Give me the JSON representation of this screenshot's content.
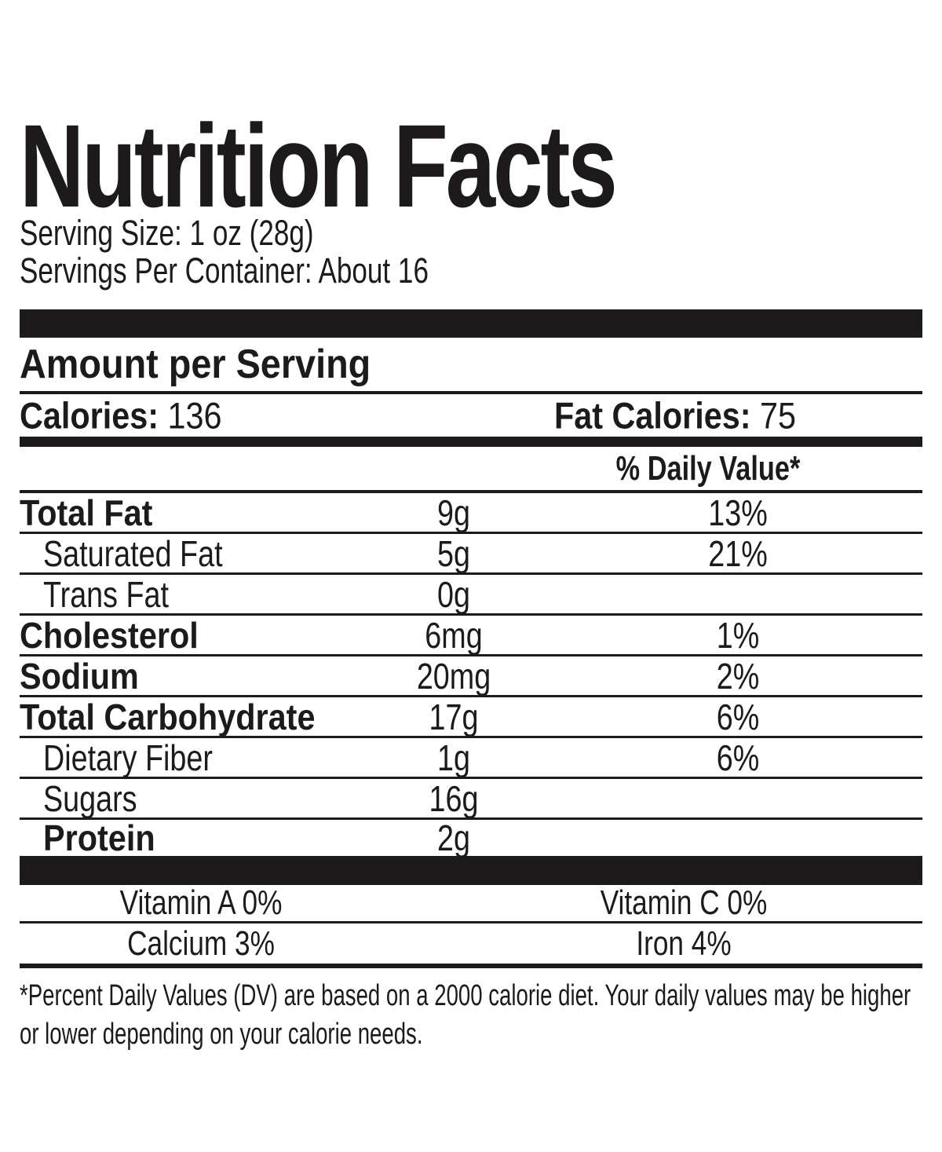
{
  "colors": {
    "ink": "#1d1a1b",
    "background": "#ffffff"
  },
  "header": {
    "title": "Nutrition Facts",
    "serving_size": "Serving Size: 1 oz (28g)",
    "servings_per_container": "Servings Per Container: About 16"
  },
  "summary": {
    "section_title": "Amount per Serving",
    "calories_label": "Calories:",
    "calories_value": "136",
    "fat_calories_label": "Fat Calories:",
    "fat_calories_value": "75"
  },
  "nutrients": {
    "daily_value_header": "% Daily Value*",
    "rows": [
      {
        "name": "Total Fat",
        "amount": "9g",
        "daily_value": "13%"
      },
      {
        "name": "Saturated Fat",
        "amount": "5g",
        "daily_value": "21%"
      },
      {
        "name": "Trans Fat",
        "amount": "0g",
        "daily_value": ""
      },
      {
        "name": "Cholesterol",
        "amount": "6mg",
        "daily_value": "1%"
      },
      {
        "name": "Sodium",
        "amount": "20mg",
        "daily_value": "2%"
      },
      {
        "name": "Total Carbohydrate",
        "amount": "17g",
        "daily_value": "6%"
      },
      {
        "name": "Dietary Fiber",
        "amount": "1g",
        "daily_value": "6%"
      },
      {
        "name": "Sugars",
        "amount": "16g",
        "daily_value": ""
      },
      {
        "name": "Protein",
        "amount": "2g",
        "daily_value": ""
      }
    ]
  },
  "micronutrients": {
    "rows": [
      {
        "left": "Vitamin A 0%",
        "right": "Vitamin C 0%"
      },
      {
        "left": "Calcium 3%",
        "right": "Iron 4%"
      }
    ]
  },
  "footnote": "*Percent Daily Values (DV) are based on a 2000 calorie diet. Your daily values may be higher or lower depending on your calorie needs."
}
